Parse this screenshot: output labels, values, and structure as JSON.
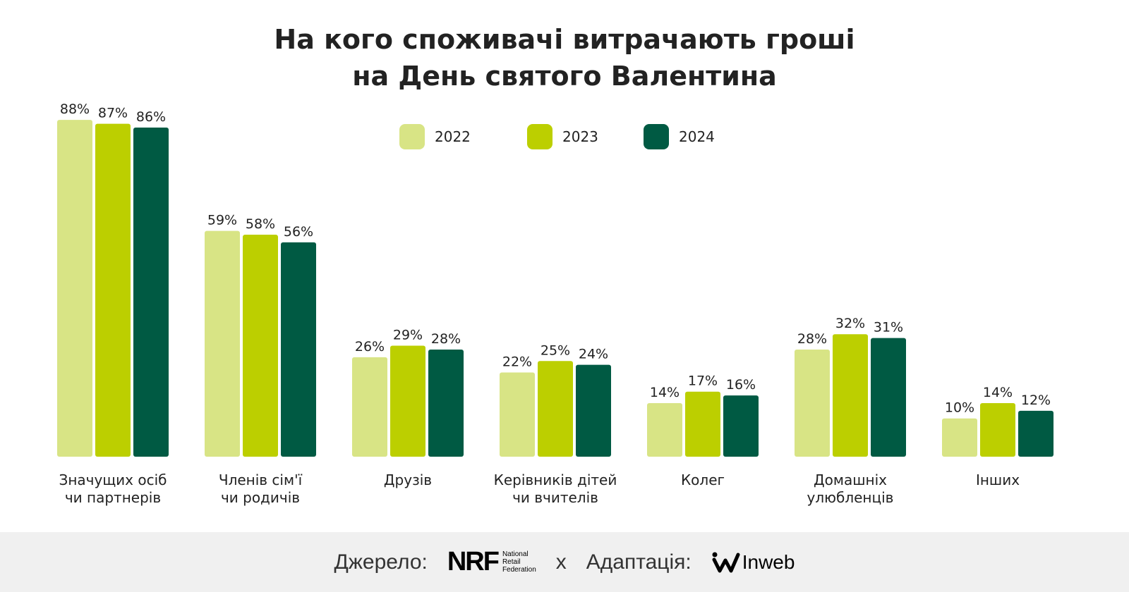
{
  "chart_data": {
    "type": "bar",
    "title_lines": [
      "На кого споживачі витрачають гроші",
      "на День святого Валентина"
    ],
    "categories": [
      [
        "Значущих осіб",
        "чи партнерів"
      ],
      [
        "Членів сім'ї",
        "чи родичів"
      ],
      [
        "Друзів"
      ],
      [
        "Керівників дітей",
        "чи вчителів"
      ],
      [
        "Колег"
      ],
      [
        "Домашніх",
        "улюбленців"
      ],
      [
        "Інших"
      ]
    ],
    "series": [
      {
        "name": "2022",
        "color": "#d8e485",
        "values": [
          88,
          59,
          26,
          22,
          14,
          28,
          10
        ]
      },
      {
        "name": "2023",
        "color": "#bccf00",
        "values": [
          87,
          58,
          29,
          25,
          17,
          32,
          14
        ]
      },
      {
        "name": "2024",
        "color": "#005a43",
        "values": [
          86,
          56,
          28,
          24,
          16,
          31,
          12
        ]
      }
    ],
    "value_suffix": "%",
    "ylim": [
      0,
      100
    ],
    "grid": false,
    "legend_placement": "top-center"
  },
  "footer": {
    "source_label": "Джерело:",
    "source_logo": "NRF",
    "source_logo_text": [
      "National",
      "Retail",
      "Federation"
    ],
    "separator": "x",
    "adaptation_label": "Адаптація:",
    "adaptation_logo": "Inweb"
  }
}
